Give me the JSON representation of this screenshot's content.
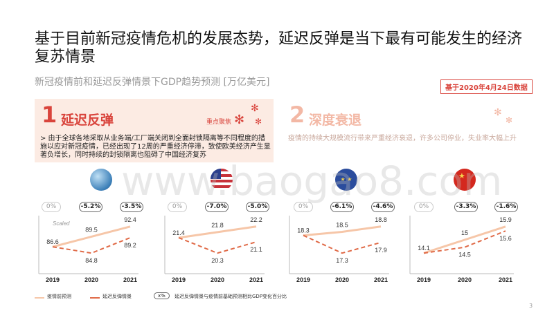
{
  "title": "基于目前新冠疫情危机的发展态势，延迟反弹是当下最有可能发生的经济复苏情景",
  "subtitle": "新冠疫情前和延迟反弹情景下GDP趋势预测 [万亿美元]",
  "date_badge": "基于2020年4月24日数据",
  "scenario1": {
    "number": "1",
    "title": "延迟反弹",
    "tag": "重点聚焦",
    "desc": "> 由于全球各地采取从业务端/工厂端关闭到全面封锁隔离等不同程度的措施以应对新冠疫情，已经出现了12周的严重经济停滞，致使欧美经济产生显著负增长，同时持续的封锁隔离也阻碍了中国经济复苏"
  },
  "scenario2": {
    "number": "2",
    "title": "深度衰退",
    "desc": "疫情的持续大规模流行带来严重经济衰退，许多公司停业，失业率大幅上升"
  },
  "regions": [
    {
      "name": "globe",
      "flag_icon": "globe-icon",
      "pills": [
        "0%",
        "-5.2%",
        "-3.5%"
      ],
      "pre": [
        86.6,
        89.5,
        92.4
      ],
      "delayed": [
        86.6,
        84.8,
        89.2
      ]
    },
    {
      "name": "us",
      "flag_icon": "us-flag-icon",
      "pills": [
        "0%",
        "-7.0%",
        "-5.0%"
      ],
      "pre": [
        21.4,
        21.8,
        22.2
      ],
      "delayed": [
        21.4,
        20.3,
        21.1
      ]
    },
    {
      "name": "eu",
      "flag_icon": "eu-flag-icon",
      "pills": [
        "0%",
        "-6.1%",
        "-4.6%"
      ],
      "pre": [
        18.3,
        18.5,
        18.8
      ],
      "delayed": [
        18.3,
        17.3,
        17.9
      ]
    },
    {
      "name": "china",
      "flag_icon": "china-flag-icon",
      "pills": [
        "0%",
        "-3.3%",
        "-1.6%"
      ],
      "pre": [
        14.1,
        15.0,
        15.9
      ],
      "delayed": [
        14.1,
        14.5,
        15.6
      ]
    }
  ],
  "years": [
    "2019",
    "2020",
    "2021"
  ],
  "scaled_label": "Scaled",
  "legend": {
    "pre": "疫情前预测",
    "delayed": "延迟反弹情景",
    "pill_sample": "x%",
    "pill_desc": "延迟反弹情景与疫情前基础预测相比GDP变化百分比"
  },
  "page_number": "3",
  "watermark": "www.baogao8.com",
  "colors": {
    "pre": "#f6c6a8",
    "delayed": "#e06a47",
    "accent": "#d9443c"
  },
  "chart_data": {
    "type": "line",
    "title": "新冠疫情前和延迟反弹情景下GDP趋势预测 [万亿美元]",
    "x": [
      "2019",
      "2020",
      "2021"
    ],
    "panels": [
      {
        "series": [
          {
            "name": "疫情前预测",
            "values": [
              86.6,
              89.5,
              92.4
            ]
          },
          {
            "name": "延迟反弹情景",
            "values": [
              86.6,
              84.8,
              89.2
            ]
          }
        ]
      },
      {
        "series": [
          {
            "name": "疫情前预测",
            "values": [
              21.4,
              21.8,
              22.2
            ]
          },
          {
            "name": "延迟反弹情景",
            "values": [
              21.4,
              20.3,
              21.1
            ]
          }
        ]
      },
      {
        "series": [
          {
            "name": "疫情前预测",
            "values": [
              18.3,
              18.5,
              18.8
            ]
          },
          {
            "name": "延迟反弹情景",
            "values": [
              18.3,
              17.3,
              17.9
            ]
          }
        ]
      },
      {
        "series": [
          {
            "name": "疫情前预测",
            "values": [
              14.1,
              15.0,
              15.9
            ]
          },
          {
            "name": "延迟反弹情景",
            "values": [
              14.1,
              14.5,
              15.6
            ]
          }
        ]
      }
    ]
  }
}
